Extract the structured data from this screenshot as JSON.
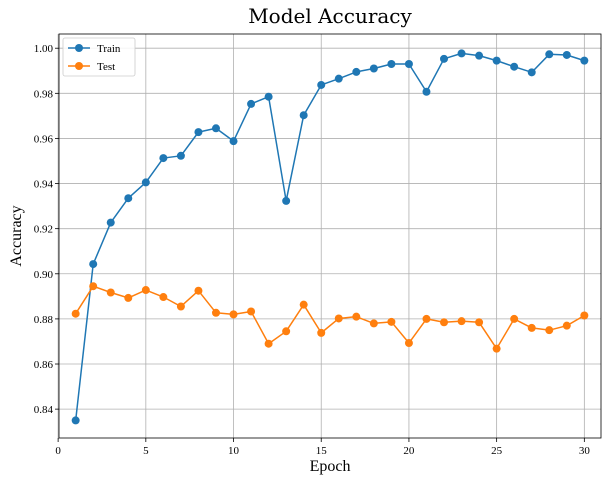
{
  "chart_data": {
    "type": "line",
    "title": "Model Accuracy",
    "xlabel": "Epoch",
    "ylabel": "Accuracy",
    "x": [
      1,
      2,
      3,
      4,
      5,
      6,
      7,
      8,
      9,
      10,
      11,
      12,
      13,
      14,
      15,
      16,
      17,
      18,
      19,
      20,
      21,
      22,
      23,
      24,
      25,
      26,
      27,
      28,
      29,
      30
    ],
    "xlim": [
      0.05,
      30.95
    ],
    "ylim": [
      0.8272,
      1.0063
    ],
    "xticks": [
      0,
      5,
      10,
      15,
      20,
      25,
      30
    ],
    "xtick_labels": [
      "0",
      "5",
      "10",
      "15",
      "20",
      "25",
      "30"
    ],
    "yticks": [
      0.84,
      0.86,
      0.88,
      0.9,
      0.92,
      0.94,
      0.96,
      0.98,
      1.0
    ],
    "ytick_labels": [
      "0.84",
      "0.86",
      "0.88",
      "0.90",
      "0.92",
      "0.94",
      "0.96",
      "0.98",
      "1.00"
    ],
    "grid": true,
    "legend_position": "top-left",
    "series": [
      {
        "name": "Train",
        "color": "#1f77b4",
        "marker": "circle",
        "values": [
          0.835,
          0.9043,
          0.9227,
          0.9335,
          0.9405,
          0.9513,
          0.9523,
          0.9628,
          0.9645,
          0.9588,
          0.9753,
          0.9785,
          0.9323,
          0.9703,
          0.9837,
          0.9865,
          0.9895,
          0.991,
          0.993,
          0.993,
          0.9807,
          0.9953,
          0.9977,
          0.9967,
          0.9945,
          0.9918,
          0.9893,
          0.9973,
          0.997,
          0.9945
        ]
      },
      {
        "name": "Test",
        "color": "#ff7f0e",
        "marker": "circle",
        "values": [
          0.8823,
          0.8945,
          0.8917,
          0.8893,
          0.8928,
          0.8897,
          0.8855,
          0.8925,
          0.8827,
          0.882,
          0.8833,
          0.869,
          0.8745,
          0.8863,
          0.8738,
          0.8802,
          0.881,
          0.878,
          0.8787,
          0.8693,
          0.88,
          0.8785,
          0.879,
          0.8785,
          0.8668,
          0.88,
          0.876,
          0.875,
          0.877,
          0.8815
        ]
      }
    ]
  }
}
